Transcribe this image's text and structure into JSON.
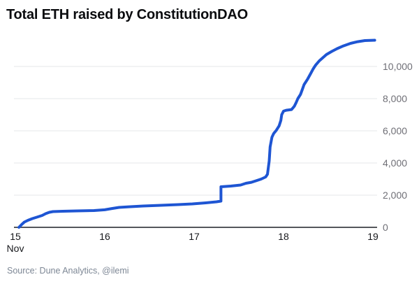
{
  "header": {
    "title": "Total ETH raised by ConstitutionDAO"
  },
  "footer": {
    "source": "Source: Dune Analytics, @ilemi"
  },
  "chart_data": {
    "type": "line",
    "title": "Total ETH raised by ConstitutionDAO",
    "xlabel": "",
    "ylabel": "",
    "x_unit": "day of November",
    "y_unit": "ETH",
    "xlim": [
      15,
      19.05
    ],
    "ylim": [
      0,
      11700
    ],
    "grid": true,
    "legend_position": "none",
    "xticks": [
      {
        "value": 15,
        "label": "15"
      },
      {
        "value": 16,
        "label": "16"
      },
      {
        "value": 17,
        "label": "17"
      },
      {
        "value": 18,
        "label": "18"
      },
      {
        "value": 19,
        "label": "19"
      }
    ],
    "x_axis_month_label": "Nov",
    "yticks": [
      {
        "value": 0,
        "label": "0"
      },
      {
        "value": 2000,
        "label": "2,000"
      },
      {
        "value": 4000,
        "label": "4,000"
      },
      {
        "value": 6000,
        "label": "6,000"
      },
      {
        "value": 8000,
        "label": "8,000"
      },
      {
        "value": 10000,
        "label": "10,000"
      }
    ],
    "series": [
      {
        "name": "Total ETH raised",
        "color": "#1e55d3",
        "points": [
          [
            15.04,
            0
          ],
          [
            15.07,
            175
          ],
          [
            15.1,
            325
          ],
          [
            15.14,
            435
          ],
          [
            15.19,
            545
          ],
          [
            15.24,
            630
          ],
          [
            15.3,
            740
          ],
          [
            15.34,
            850
          ],
          [
            15.38,
            935
          ],
          [
            15.42,
            980
          ],
          [
            15.53,
            1000
          ],
          [
            15.69,
            1020
          ],
          [
            15.88,
            1045
          ],
          [
            16.0,
            1090
          ],
          [
            16.08,
            1170
          ],
          [
            16.16,
            1240
          ],
          [
            16.27,
            1280
          ],
          [
            16.43,
            1325
          ],
          [
            16.63,
            1370
          ],
          [
            16.82,
            1415
          ],
          [
            16.98,
            1455
          ],
          [
            17.13,
            1520
          ],
          [
            17.25,
            1585
          ],
          [
            17.3,
            1630
          ],
          [
            17.3,
            2520
          ],
          [
            17.41,
            2565
          ],
          [
            17.52,
            2630
          ],
          [
            17.58,
            2740
          ],
          [
            17.64,
            2800
          ],
          [
            17.7,
            2910
          ],
          [
            17.75,
            3000
          ],
          [
            17.8,
            3130
          ],
          [
            17.82,
            3300
          ],
          [
            17.84,
            4130
          ],
          [
            17.85,
            5000
          ],
          [
            17.87,
            5600
          ],
          [
            17.89,
            5830
          ],
          [
            17.92,
            6040
          ],
          [
            17.95,
            6300
          ],
          [
            17.97,
            6650
          ],
          [
            17.98,
            7000
          ],
          [
            18.0,
            7220
          ],
          [
            18.03,
            7280
          ],
          [
            18.09,
            7320
          ],
          [
            18.12,
            7520
          ],
          [
            18.14,
            7740
          ],
          [
            18.16,
            8000
          ],
          [
            18.19,
            8260
          ],
          [
            18.21,
            8565
          ],
          [
            18.23,
            8870
          ],
          [
            18.27,
            9220
          ],
          [
            18.3,
            9520
          ],
          [
            18.33,
            9830
          ],
          [
            18.36,
            10090
          ],
          [
            18.4,
            10350
          ],
          [
            18.44,
            10545
          ],
          [
            18.48,
            10740
          ],
          [
            18.54,
            10935
          ],
          [
            18.6,
            11110
          ],
          [
            18.67,
            11280
          ],
          [
            18.75,
            11435
          ],
          [
            18.83,
            11540
          ],
          [
            18.91,
            11610
          ],
          [
            19.02,
            11630
          ]
        ]
      }
    ],
    "colors": {
      "line": "#1e55d3",
      "grid": "#e6e7e9",
      "axis": "#55575c",
      "y_tick_text": "#6f6f76",
      "x_tick_text": "#17181c",
      "title_text": "#0b0c0f",
      "source_text": "#7d8795",
      "background": "#ffffff"
    }
  }
}
